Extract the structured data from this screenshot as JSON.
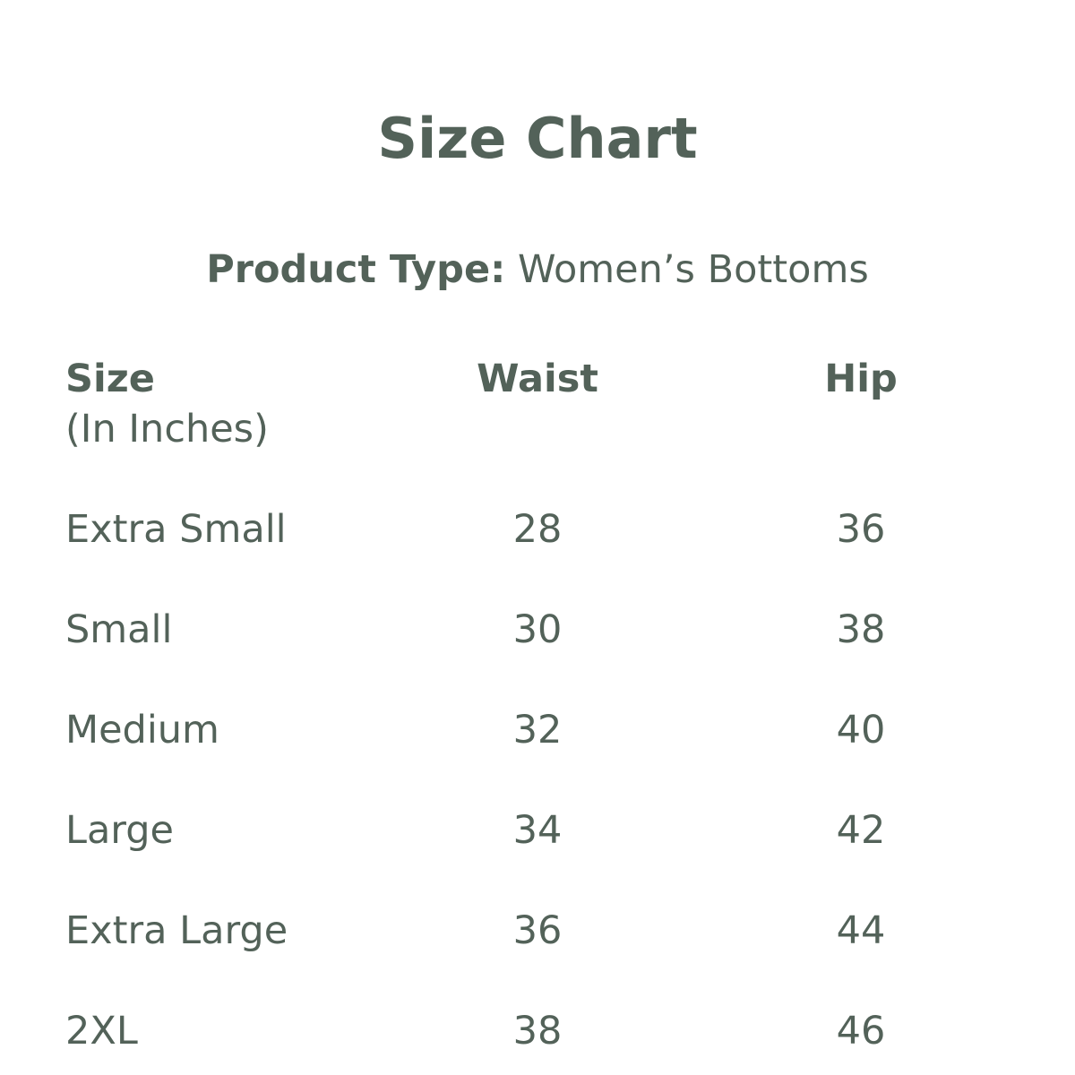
{
  "title": "Size Chart",
  "product_type_label": "Product Type:",
  "product_type_value": "Women’s Bottoms",
  "colors": {
    "text": "#536259",
    "background": "#ffffff"
  },
  "table": {
    "headers": {
      "size": "Size",
      "size_note": "(In Inches)",
      "waist": "Waist",
      "hip": "Hip"
    },
    "rows": [
      {
        "size": "Extra Small",
        "waist": "28",
        "hip": "36"
      },
      {
        "size": "Small",
        "waist": "30",
        "hip": "38"
      },
      {
        "size": "Medium",
        "waist": "32",
        "hip": "40"
      },
      {
        "size": "Large",
        "waist": "34",
        "hip": "42"
      },
      {
        "size": "Extra Large",
        "waist": "36",
        "hip": "44"
      },
      {
        "size": "2XL",
        "waist": "38",
        "hip": "46"
      }
    ]
  }
}
